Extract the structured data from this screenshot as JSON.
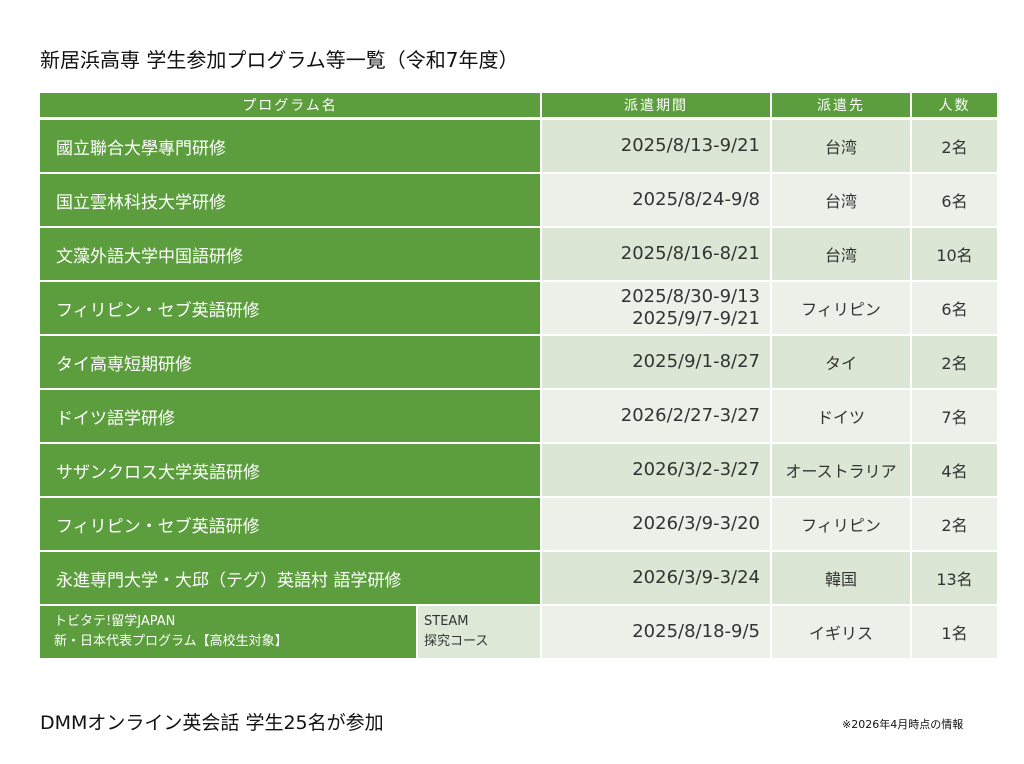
{
  "header": {
    "title": "新居浜高専 学生参加プログラム等一覧（令和7年度）"
  },
  "table": {
    "columns": [
      "プログラム名",
      "派遣期間",
      "派遣先",
      "人数"
    ],
    "rows": [
      {
        "program": [
          "國立聯合大學專門研修"
        ],
        "period": [
          "2025/8/13-9/21"
        ],
        "destination": "台湾",
        "count": "2名"
      },
      {
        "program": [
          "国立雲林科技大学研修"
        ],
        "period": [
          "2025/8/24-9/8"
        ],
        "destination": "台湾",
        "count": "6名"
      },
      {
        "program": [
          "文藻外語大学中国語研修"
        ],
        "period": [
          "2025/8/16-8/21"
        ],
        "destination": "台湾",
        "count": "10名"
      },
      {
        "program": [
          "フィリピン・セブ英語研修"
        ],
        "period": [
          "2025/8/30-9/13",
          "2025/9/7-9/21"
        ],
        "destination": "フィリピン",
        "count": "6名"
      },
      {
        "program": [
          "タイ高専短期研修"
        ],
        "period": [
          "2025/9/1-8/27"
        ],
        "destination": "タイ",
        "count": "2名"
      },
      {
        "program": [
          "ドイツ語学研修"
        ],
        "period": [
          "2026/2/27-3/27"
        ],
        "destination": "ドイツ",
        "count": "7名"
      },
      {
        "program": [
          "サザンクロス大学英語研修"
        ],
        "period": [
          "2026/3/2-3/27"
        ],
        "destination": "オーストラリア",
        "count": "4名"
      },
      {
        "program": [
          "フィリピン・セブ英語研修"
        ],
        "period": [
          "2026/3/9-3/20"
        ],
        "destination": "フィリピン",
        "count": "2名"
      },
      {
        "program": [
          "永進専門大学・大邱（テグ）英語村 語学研修"
        ],
        "period": [
          "2026/3/9-3/24"
        ],
        "destination": "韓国",
        "count": "13名"
      },
      {
        "program": [
          "トビタテ!留学JAPAN",
          "新・日本代表プログラム【高校生対象】"
        ],
        "course": [
          "STEAM",
          "探究コース"
        ],
        "period": [
          "2025/8/18-9/5"
        ],
        "destination": "イギリス",
        "count": "1名"
      }
    ]
  },
  "footer": {
    "text": "DMMオンライン英会話 学生25名が参加",
    "note": "※2026年4月時点の情報"
  }
}
